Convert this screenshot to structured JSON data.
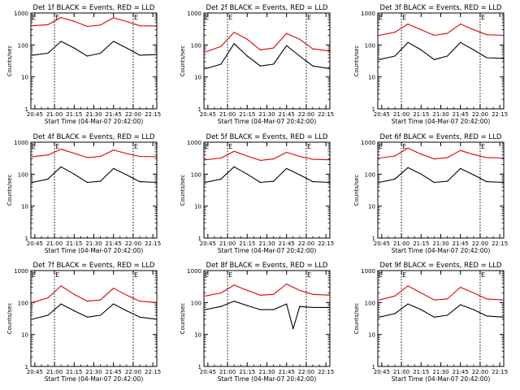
{
  "chart_data": [
    {
      "type": "line",
      "title": "Det 1f BLACK = Events, RED = LLD",
      "xlabel": "Start Time (04-Mar-07 20:42:00)",
      "ylabel": "Counts/sec",
      "x_ticks": [
        "20:45",
        "21:00",
        "21:15",
        "21:30",
        "21:45",
        "22:00",
        "22:15"
      ],
      "y_ticks": [
        "1",
        "10",
        "100",
        "1000"
      ],
      "ylim": [
        1,
        1000
      ],
      "y_scale": "log",
      "marker_times": [
        "21:00",
        "22:00"
      ],
      "marker_labels": [
        "E",
        "E"
      ],
      "x": [
        "20:43",
        "20:55",
        "21:05",
        "21:15",
        "21:25",
        "21:35",
        "21:45",
        "21:55",
        "22:05",
        "22:18"
      ],
      "series": [
        {
          "name": "BLACK",
          "color": "#000000",
          "values": [
            48,
            55,
            130,
            80,
            45,
            55,
            130,
            80,
            48,
            50
          ]
        },
        {
          "name": "RED",
          "color": "#e00000",
          "values": [
            400,
            430,
            720,
            550,
            380,
            420,
            710,
            540,
            400,
            390
          ]
        }
      ]
    },
    {
      "type": "line",
      "title": "Det 2f BLACK = Events, RED = LLD",
      "xlabel": "Start Time (04-Mar-07 20:42:00)",
      "ylabel": "Counts/sec",
      "x_ticks": [
        "20:45",
        "21:00",
        "21:15",
        "21:30",
        "21:45",
        "22:00",
        "22:15"
      ],
      "y_ticks": [
        "1",
        "10",
        "100",
        "1000"
      ],
      "ylim": [
        1,
        1000
      ],
      "y_scale": "log",
      "marker_times": [
        "21:00",
        "22:00"
      ],
      "marker_labels": [
        "E",
        "E"
      ],
      "x": [
        "20:43",
        "20:55",
        "21:05",
        "21:15",
        "21:25",
        "21:35",
        "21:45",
        "21:55",
        "22:05",
        "22:18"
      ],
      "series": [
        {
          "name": "BLACK",
          "color": "#000000",
          "values": [
            18,
            25,
            110,
            45,
            22,
            25,
            95,
            45,
            22,
            18
          ]
        },
        {
          "name": "RED",
          "color": "#e00000",
          "values": [
            60,
            90,
            250,
            150,
            70,
            80,
            230,
            150,
            75,
            65
          ]
        }
      ]
    },
    {
      "type": "line",
      "title": "Det 3f BLACK = Events, RED = LLD",
      "xlabel": "Start Time (04-Mar-07 20:42:00)",
      "ylabel": "Counts/sec",
      "x_ticks": [
        "20:45",
        "21:00",
        "21:15",
        "21:30",
        "21:45",
        "22:00",
        "22:15"
      ],
      "y_ticks": [
        "1",
        "10",
        "100",
        "1000"
      ],
      "ylim": [
        1,
        1000
      ],
      "y_scale": "log",
      "marker_times": [
        "21:00",
        "22:00"
      ],
      "marker_labels": [
        "E",
        "E"
      ],
      "x": [
        "20:43",
        "20:55",
        "21:05",
        "21:15",
        "21:25",
        "21:35",
        "21:45",
        "21:55",
        "22:05",
        "22:18"
      ],
      "series": [
        {
          "name": "BLACK",
          "color": "#000000",
          "values": [
            35,
            45,
            120,
            70,
            35,
            45,
            120,
            70,
            40,
            38
          ]
        },
        {
          "name": "RED",
          "color": "#e00000",
          "values": [
            200,
            250,
            450,
            300,
            200,
            230,
            450,
            300,
            210,
            200
          ]
        }
      ]
    },
    {
      "type": "line",
      "title": "Det 4f BLACK = Events, RED = LLD",
      "xlabel": "Start Time (04-Mar-07 20:42:00)",
      "ylabel": "Counts/sec",
      "x_ticks": [
        "20:45",
        "21:00",
        "21:15",
        "21:30",
        "21:45",
        "22:00",
        "22:15"
      ],
      "y_ticks": [
        "1",
        "10",
        "100",
        "1000"
      ],
      "ylim": [
        1,
        1000
      ],
      "y_scale": "log",
      "marker_times": [
        "21:00",
        "22:00"
      ],
      "marker_labels": [
        "E",
        "E"
      ],
      "x": [
        "20:43",
        "20:55",
        "21:05",
        "21:15",
        "21:25",
        "21:35",
        "21:45",
        "21:55",
        "22:05",
        "22:18"
      ],
      "series": [
        {
          "name": "BLACK",
          "color": "#000000",
          "values": [
            55,
            70,
            170,
            100,
            55,
            60,
            150,
            95,
            58,
            55
          ]
        },
        {
          "name": "RED",
          "color": "#e00000",
          "values": [
            350,
            400,
            600,
            450,
            330,
            360,
            570,
            440,
            360,
            350
          ]
        }
      ]
    },
    {
      "type": "line",
      "title": "Det 5f BLACK = Events, RED = LLD",
      "xlabel": "Start Time (04-Mar-07 20:42:00)",
      "ylabel": "Counts/sec",
      "x_ticks": [
        "20:45",
        "21:00",
        "21:15",
        "21:30",
        "21:45",
        "22:00",
        "22:15"
      ],
      "y_ticks": [
        "1",
        "10",
        "100",
        "1000"
      ],
      "ylim": [
        1,
        1000
      ],
      "y_scale": "log",
      "marker_times": [
        "21:00",
        "22:00"
      ],
      "marker_labels": [
        "E",
        "E"
      ],
      "x": [
        "20:43",
        "20:55",
        "21:05",
        "21:15",
        "21:25",
        "21:35",
        "21:45",
        "21:55",
        "22:05",
        "22:18"
      ],
      "series": [
        {
          "name": "BLACK",
          "color": "#000000",
          "values": [
            55,
            70,
            170,
            100,
            55,
            60,
            150,
            95,
            58,
            55
          ]
        },
        {
          "name": "RED",
          "color": "#e00000",
          "values": [
            280,
            320,
            520,
            370,
            270,
            300,
            480,
            360,
            290,
            280
          ]
        }
      ]
    },
    {
      "type": "line",
      "title": "Det 6f BLACK = Events, RED = LLD",
      "xlabel": "Start Time (04-Mar-07 20:42:00)",
      "ylabel": "Counts/sec",
      "x_ticks": [
        "20:45",
        "21:00",
        "21:15",
        "21:30",
        "21:45",
        "22:00",
        "22:15"
      ],
      "y_ticks": [
        "1",
        "10",
        "100",
        "1000"
      ],
      "ylim": [
        1,
        1000
      ],
      "y_scale": "log",
      "marker_times": [
        "21:00",
        "22:00"
      ],
      "marker_labels": [
        "E",
        "E"
      ],
      "x": [
        "20:43",
        "20:55",
        "21:05",
        "21:15",
        "21:25",
        "21:35",
        "21:45",
        "21:55",
        "22:05",
        "22:18"
      ],
      "series": [
        {
          "name": "BLACK",
          "color": "#000000",
          "values": [
            55,
            70,
            160,
            100,
            55,
            60,
            150,
            95,
            58,
            55
          ]
        },
        {
          "name": "RED",
          "color": "#e00000",
          "values": [
            320,
            370,
            650,
            420,
            300,
            330,
            550,
            410,
            330,
            320
          ]
        }
      ]
    },
    {
      "type": "line",
      "title": "Det 7f BLACK = Events, RED = LLD",
      "xlabel": "Start Time (04-Mar-07 20:42:00)",
      "ylabel": "Counts/sec",
      "x_ticks": [
        "20:45",
        "21:00",
        "21:15",
        "21:30",
        "21:45",
        "22:00",
        "22:15"
      ],
      "y_ticks": [
        "1",
        "10",
        "100",
        "1000"
      ],
      "ylim": [
        1,
        1000
      ],
      "y_scale": "log",
      "marker_times": [
        "21:00",
        "22:00"
      ],
      "marker_labels": [
        "E",
        "E"
      ],
      "x": [
        "20:43",
        "20:55",
        "21:05",
        "21:15",
        "21:25",
        "21:35",
        "21:45",
        "21:55",
        "22:05",
        "22:18"
      ],
      "series": [
        {
          "name": "BLACK",
          "color": "#000000",
          "values": [
            30,
            40,
            90,
            55,
            35,
            40,
            90,
            55,
            35,
            30
          ]
        },
        {
          "name": "RED",
          "color": "#e00000",
          "values": [
            100,
            140,
            330,
            180,
            110,
            120,
            280,
            170,
            110,
            100
          ]
        }
      ]
    },
    {
      "type": "line",
      "title": "Det 8f BLACK = Events, RED = LLD",
      "xlabel": "Start Time (04-Mar-07 20:42:00)",
      "ylabel": "Counts/sec",
      "x_ticks": [
        "20:45",
        "21:00",
        "21:15",
        "21:30",
        "21:45",
        "22:00",
        "22:15"
      ],
      "y_ticks": [
        "1",
        "10",
        "100",
        "1000"
      ],
      "ylim": [
        1,
        1000
      ],
      "y_scale": "log",
      "marker_times": [
        "21:00",
        "22:00"
      ],
      "marker_labels": [
        "E",
        "E"
      ],
      "x": [
        "20:43",
        "20:55",
        "21:05",
        "21:15",
        "21:25",
        "21:35",
        "21:45",
        "21:50",
        "21:55",
        "22:05",
        "22:18"
      ],
      "series": [
        {
          "name": "BLACK",
          "color": "#000000",
          "values": [
            60,
            75,
            110,
            80,
            60,
            60,
            90,
            15,
            75,
            70,
            70
          ]
        },
        {
          "name": "RED",
          "color": "#e00000",
          "values": [
            160,
            200,
            350,
            240,
            170,
            180,
            380,
            300,
            240,
            180,
            170
          ]
        }
      ]
    },
    {
      "type": "line",
      "title": "Det 9f BLACK = Events, RED = LLD",
      "xlabel": "Start Time (04-Mar-07 20:42:00)",
      "ylabel": "Counts/sec",
      "x_ticks": [
        "20:45",
        "21:00",
        "21:15",
        "21:30",
        "21:45",
        "22:00",
        "22:15"
      ],
      "y_ticks": [
        "1",
        "10",
        "100",
        "1000"
      ],
      "ylim": [
        1,
        1000
      ],
      "y_scale": "log",
      "marker_times": [
        "21:00",
        "22:00"
      ],
      "marker_labels": [
        "E",
        "E"
      ],
      "x": [
        "20:43",
        "20:55",
        "21:05",
        "21:15",
        "21:25",
        "21:35",
        "21:45",
        "21:55",
        "22:05",
        "22:18"
      ],
      "series": [
        {
          "name": "BLACK",
          "color": "#000000",
          "values": [
            35,
            45,
            90,
            60,
            35,
            40,
            85,
            60,
            38,
            35
          ]
        },
        {
          "name": "RED",
          "color": "#e00000",
          "values": [
            120,
            160,
            330,
            200,
            120,
            130,
            300,
            200,
            130,
            120
          ]
        }
      ]
    }
  ]
}
